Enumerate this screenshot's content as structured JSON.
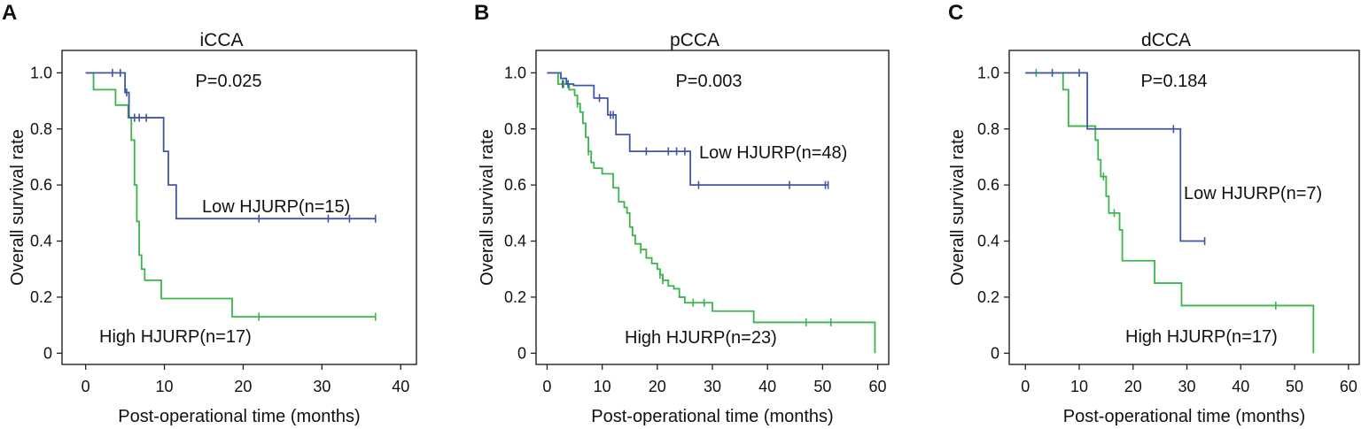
{
  "chart_data": [
    {
      "type": "line",
      "panel_label": "A",
      "title": "iCCA",
      "p_value": "P=0.025",
      "xlabel": "Post-operational time (months)",
      "ylabel": "Overall survival rate",
      "xlim": [
        -3,
        42
      ],
      "ylim": [
        -0.04,
        1.08
      ],
      "xticks": [
        0,
        10,
        20,
        30,
        40
      ],
      "xtick_labels": [
        "0",
        "10",
        "20",
        "30",
        "40"
      ],
      "yticks": [
        0,
        0.2,
        0.4,
        0.6,
        0.8,
        1.0
      ],
      "ytick_labels": [
        "0",
        "0.2",
        "0.4",
        "0.6",
        "0.8",
        "1.0"
      ],
      "series": [
        {
          "name": "Low HJURP(n=15)",
          "color": "#3f57a4",
          "x": [
            0,
            5,
            5.5,
            9.9,
            10.5,
            11.5,
            36.8
          ],
          "y": [
            1.0,
            0.93,
            0.84,
            0.72,
            0.6,
            0.48,
            0.48
          ],
          "censored": [
            [
              3.4,
              1.0
            ],
            [
              4.4,
              1.0
            ],
            [
              5.2,
              0.93
            ],
            [
              6.2,
              0.84
            ],
            [
              6.8,
              0.84
            ],
            [
              7.7,
              0.84
            ],
            [
              22,
              0.48
            ],
            [
              30.8,
              0.48
            ],
            [
              33.5,
              0.48
            ],
            [
              36.8,
              0.48
            ]
          ]
        },
        {
          "name": "High HJURP(n=17)",
          "color": "#3bb54a",
          "x": [
            0,
            1,
            3.8,
            5.4,
            5.8,
            6.2,
            6.5,
            6.8,
            7.1,
            7.5,
            9.6,
            18.6,
            36.8
          ],
          "y": [
            1.0,
            0.94,
            0.885,
            0.84,
            0.76,
            0.6,
            0.47,
            0.35,
            0.3,
            0.26,
            0.195,
            0.13,
            0.13
          ],
          "censored": [
            [
              22,
              0.13
            ],
            [
              36.8,
              0.13
            ]
          ]
        }
      ]
    },
    {
      "type": "line",
      "panel_label": "B",
      "title": "pCCA",
      "p_value": "P=0.003",
      "xlabel": "Post-operational time (months)",
      "ylabel": "Overall survival rate",
      "xlim": [
        -2,
        62
      ],
      "ylim": [
        -0.04,
        1.08
      ],
      "xticks": [
        0,
        10,
        20,
        30,
        40,
        50,
        60
      ],
      "xtick_labels": [
        "0",
        "10",
        "20",
        "30",
        "40",
        "50",
        "60"
      ],
      "yticks": [
        0,
        0.2,
        0.4,
        0.6,
        0.8,
        1.0
      ],
      "ytick_labels": [
        "0",
        "0.2",
        "0.4",
        "0.6",
        "0.8",
        "1.0"
      ],
      "series": [
        {
          "name": "Low HJURP(n=48)",
          "color": "#3f57a4",
          "x": [
            0,
            2.5,
            3.5,
            4.8,
            8.5,
            11,
            12.5,
            15,
            26,
            51
          ],
          "y": [
            1.0,
            0.98,
            0.96,
            0.955,
            0.91,
            0.85,
            0.78,
            0.72,
            0.6,
            0.6
          ],
          "censored": [
            [
              2.8,
              0.96
            ],
            [
              3.8,
              0.96
            ],
            [
              9.5,
              0.91
            ],
            [
              11.5,
              0.85
            ],
            [
              12,
              0.85
            ],
            [
              18,
              0.72
            ],
            [
              22,
              0.72
            ],
            [
              23.5,
              0.72
            ],
            [
              25,
              0.72
            ],
            [
              27.5,
              0.6
            ],
            [
              44,
              0.6
            ],
            [
              50.5,
              0.6
            ],
            [
              51,
              0.6
            ]
          ]
        },
        {
          "name": "High HJURP(n=23)",
          "color": "#3bb54a",
          "x": [
            0,
            2,
            4,
            5,
            5.5,
            6,
            6.5,
            7,
            7.5,
            8,
            8.5,
            9,
            10,
            12,
            13,
            14,
            14.5,
            15,
            15.5,
            16,
            17,
            18,
            19,
            20,
            20.5,
            21,
            22,
            23,
            24,
            25,
            26,
            30,
            37.5,
            59.5,
            59.5
          ],
          "y": [
            1.0,
            0.96,
            0.94,
            0.92,
            0.89,
            0.86,
            0.82,
            0.77,
            0.72,
            0.68,
            0.66,
            0.66,
            0.64,
            0.59,
            0.54,
            0.52,
            0.5,
            0.45,
            0.42,
            0.39,
            0.37,
            0.34,
            0.32,
            0.3,
            0.28,
            0.26,
            0.24,
            0.23,
            0.2,
            0.18,
            0.18,
            0.15,
            0.11,
            0.11,
            0.0
          ],
          "censored": [
            [
              3,
              0.96
            ],
            [
              5.5,
              0.89
            ],
            [
              7.5,
              0.72
            ],
            [
              17,
              0.37
            ],
            [
              20.5,
              0.28
            ],
            [
              21,
              0.26
            ],
            [
              26.5,
              0.18
            ],
            [
              28.5,
              0.18
            ],
            [
              47,
              0.11
            ],
            [
              51.5,
              0.11
            ]
          ]
        }
      ]
    },
    {
      "type": "line",
      "panel_label": "C",
      "title": "dCCA",
      "p_value": "P=0.184",
      "xlabel": "Post-operational time (months)",
      "ylabel": "Overall survival rate",
      "xlim": [
        -3,
        62
      ],
      "ylim": [
        -0.04,
        1.08
      ],
      "xticks": [
        0,
        10,
        20,
        30,
        40,
        50,
        60
      ],
      "xtick_labels": [
        "0",
        "10",
        "20",
        "30",
        "40",
        "50",
        "60"
      ],
      "yticks": [
        0,
        0.2,
        0.4,
        0.6,
        0.8,
        1.0
      ],
      "ytick_labels": [
        "0",
        "0.2",
        "0.4",
        "0.6",
        "0.8",
        "1.0"
      ],
      "series": [
        {
          "name": "Low HJURP(n=7)",
          "color": "#3f57a4",
          "x": [
            0,
            11.5,
            28.8,
            33.3
          ],
          "y": [
            1.0,
            0.8,
            0.4,
            0.4
          ],
          "censored": [
            [
              5,
              1.0
            ],
            [
              10,
              1.0
            ],
            [
              27.5,
              0.8
            ],
            [
              33.3,
              0.4
            ]
          ]
        },
        {
          "name": "High HJURP(n=17)",
          "color": "#3bb54a",
          "x": [
            0,
            7,
            8,
            13,
            13.5,
            14,
            15,
            15.5,
            16,
            16.5,
            17.5,
            18,
            24,
            29,
            53.5,
            53.5
          ],
          "y": [
            1.0,
            0.94,
            0.81,
            0.76,
            0.69,
            0.63,
            0.56,
            0.5,
            0.5,
            0.5,
            0.44,
            0.33,
            0.25,
            0.17,
            0.17,
            0.0
          ],
          "censored": [
            [
              2,
              1.0
            ],
            [
              14.5,
              0.63
            ],
            [
              16.5,
              0.5
            ],
            [
              46.5,
              0.17
            ]
          ]
        }
      ]
    }
  ]
}
